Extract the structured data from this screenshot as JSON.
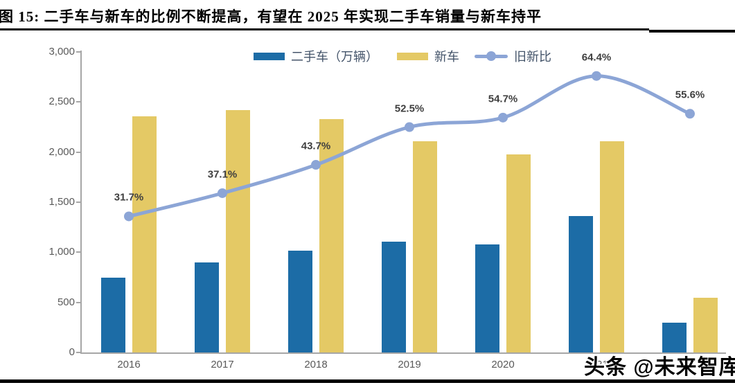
{
  "figure": {
    "title": "图 15: 二手车与新车的比例不断提高，有望在 2025 年实现二手车销量与新车持平"
  },
  "watermark": {
    "text": "头条 @未来智库"
  },
  "colors": {
    "used_car_bar": "#1C6CA6",
    "new_car_bar": "#E4C965",
    "ratio_line": "#8CA5D6",
    "axis": "#A6A6A6",
    "tick_text": "#595959",
    "point_label_text": "#3F3F3F",
    "legend_text": "#44546A"
  },
  "chart_data": {
    "type": "combo-bar-line",
    "categories": [
      "2016",
      "2017",
      "2018",
      "2019",
      "2020",
      "2021",
      ""
    ],
    "series": [
      {
        "name": "二手车（万辆）",
        "type": "bar",
        "axis": "left",
        "color": "#1C6CA6",
        "values": [
          745,
          900,
          1015,
          1105,
          1080,
          1360,
          300
        ]
      },
      {
        "name": "新车",
        "type": "bar",
        "axis": "left",
        "color": "#E4C965",
        "values": [
          2360,
          2420,
          2330,
          2105,
          1975,
          2110,
          545
        ]
      },
      {
        "name": "旧新比",
        "type": "line",
        "axis": "right",
        "color": "#8CA5D6",
        "values": [
          31.7,
          37.1,
          43.7,
          52.5,
          54.7,
          64.4,
          55.6
        ],
        "point_labels": [
          "31.7%",
          "37.1%",
          "43.7%",
          "52.5%",
          "54.7%",
          "64.4%",
          "55.6%"
        ]
      }
    ],
    "left_axis": {
      "min": 0,
      "max": 3000,
      "tick_labels": [
        "0",
        "500",
        "1,000",
        "1,500",
        "2,000",
        "2,500",
        "3,000"
      ]
    },
    "right_axis": {
      "min": 0,
      "max": 70,
      "visible": false
    },
    "legend_position": "top",
    "grid": false
  }
}
